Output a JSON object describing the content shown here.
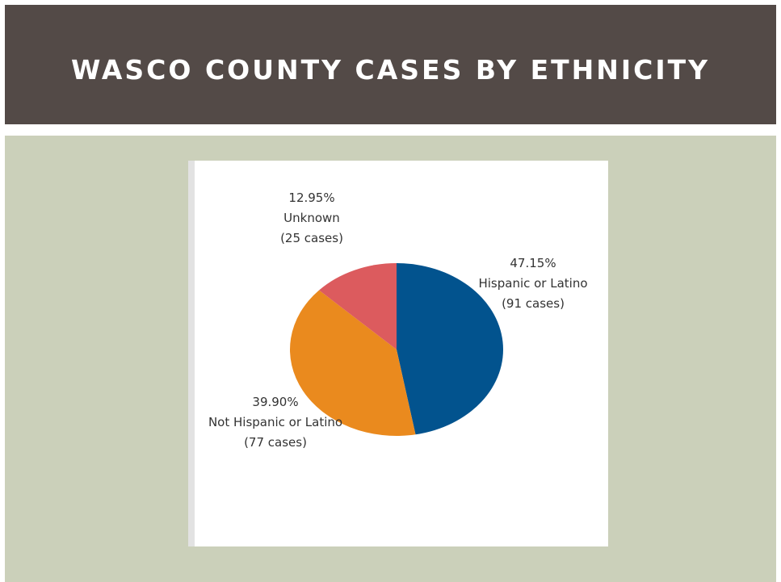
{
  "header": {
    "title": "WASCO COUNTY CASES BY ETHNICITY"
  },
  "colors": {
    "header_bg": "#534a47",
    "content_bg": "#cbd0ba"
  },
  "chart_data": {
    "type": "pie",
    "title": "",
    "slices": [
      {
        "label": "Hispanic or Latino",
        "percent": "47.15%",
        "value": 47.15,
        "cases": "(91 cases)",
        "count": 91,
        "color": "#02538e"
      },
      {
        "label": "Not Hispanic or Latino",
        "percent": "39.90%",
        "value": 39.9,
        "cases": "(77 cases)",
        "count": 77,
        "color": "#ea8a1e"
      },
      {
        "label": "Unknown",
        "percent": "12.95%",
        "value": 12.95,
        "cases": "(25 cases)",
        "count": 25,
        "color": "#dc5b5e"
      }
    ]
  }
}
